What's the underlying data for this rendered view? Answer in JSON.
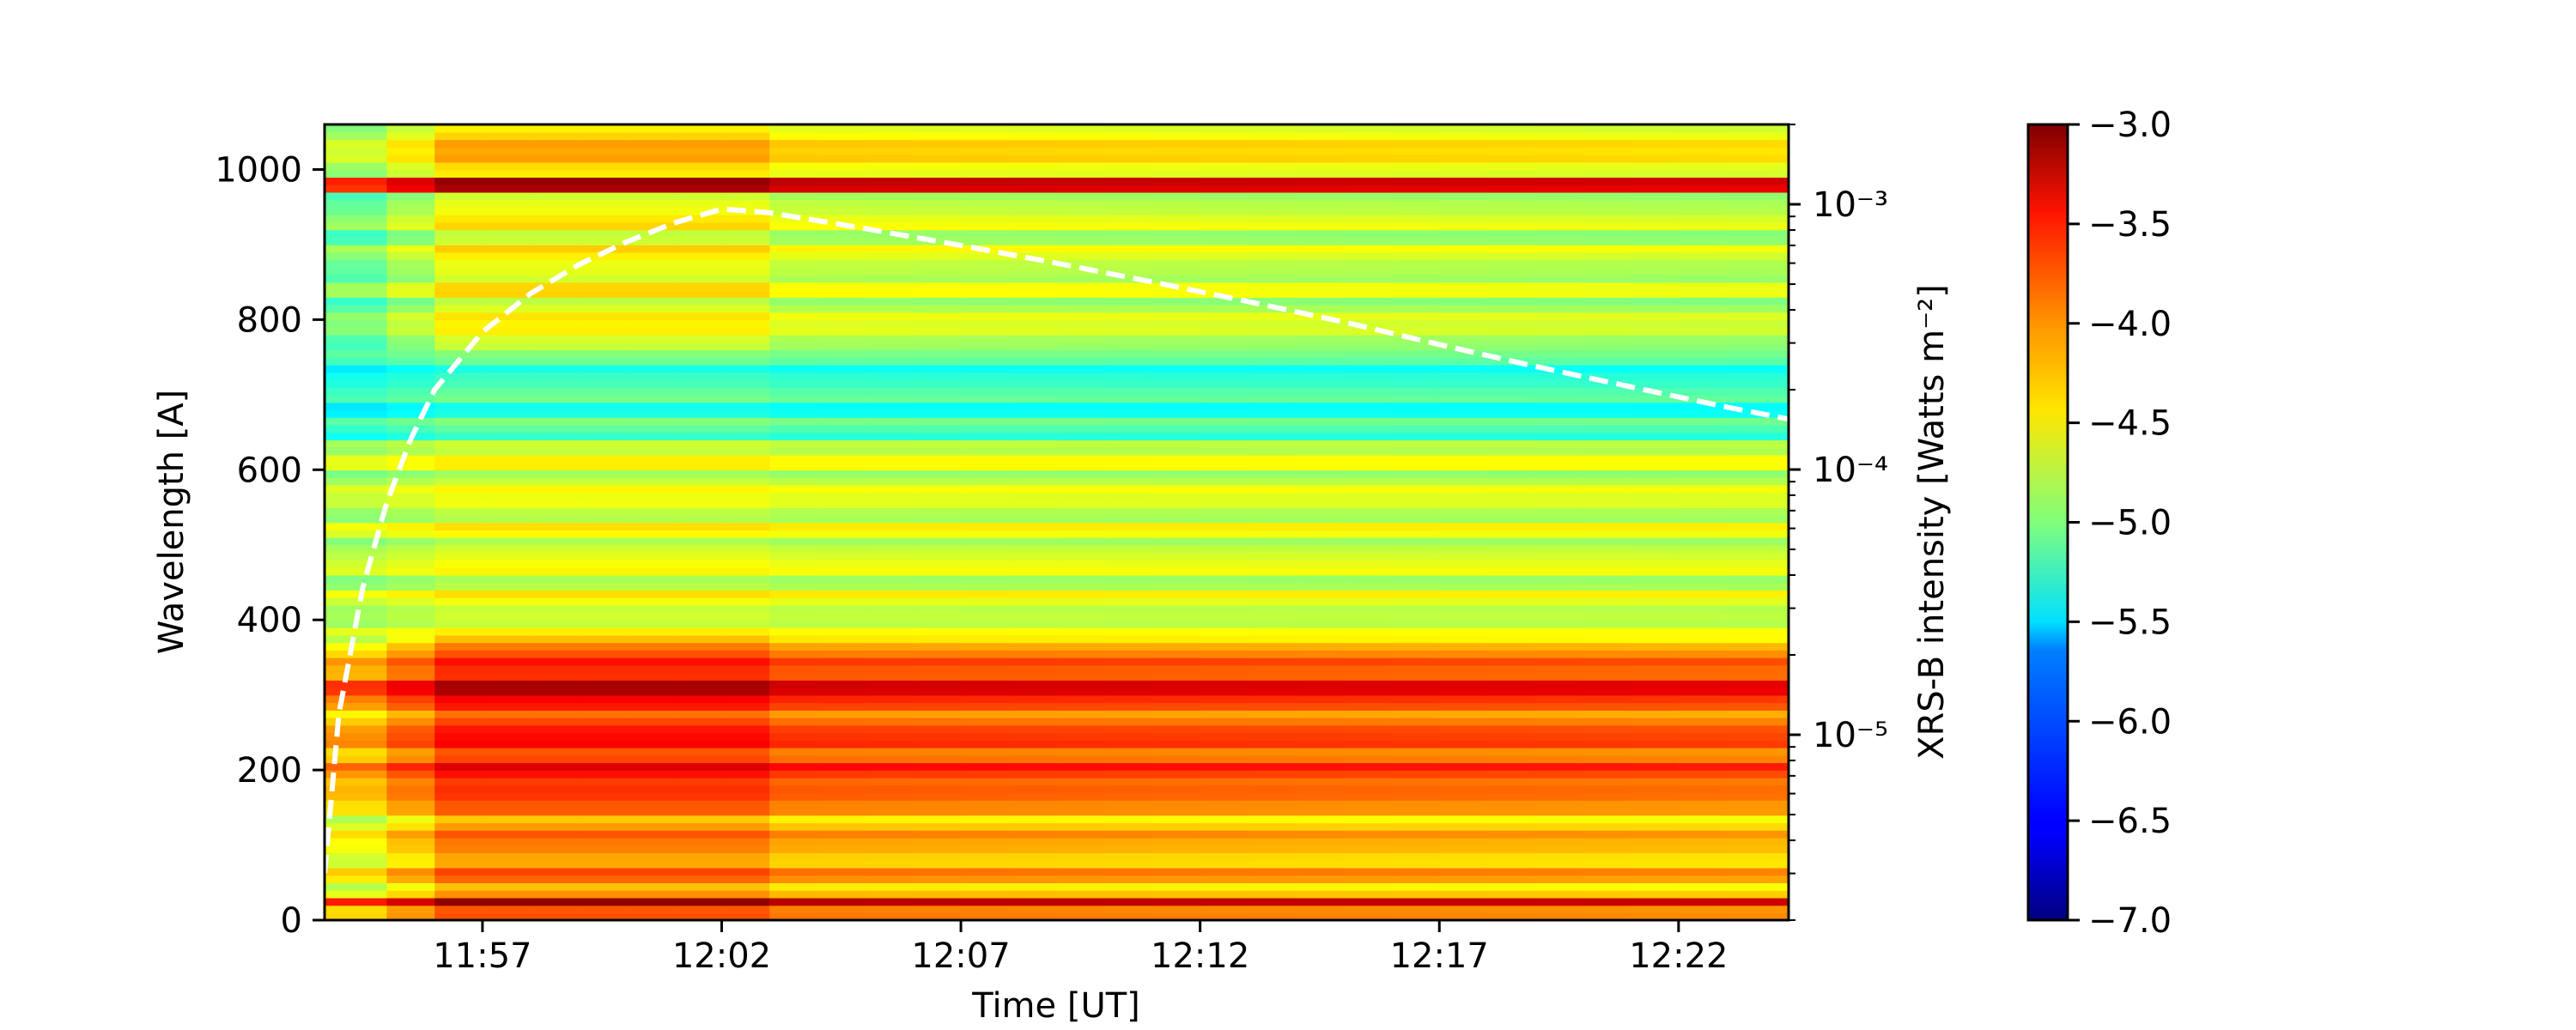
{
  "chart_data": {
    "type": "heatmap",
    "title": "",
    "xlabel": "Time [UT]",
    "ylabel": "Wavelength [A]",
    "y2label": "XRS-B intensity [Watts m⁻²]",
    "x_ticks": [
      "11:57",
      "12:02",
      "12:07",
      "12:12",
      "12:17",
      "12:22"
    ],
    "x_tick_minutes": [
      0,
      5,
      10,
      15,
      20,
      25
    ],
    "x_range_minutes_from_1157": [
      -3.3,
      27.3
    ],
    "ylim": [
      0,
      1060
    ],
    "y_ticks": [
      0,
      200,
      400,
      600,
      800,
      1000
    ],
    "y2_scale": "log",
    "y2_ticks": [
      "10⁻⁵",
      "10⁻⁴",
      "10⁻³"
    ],
    "y2_tick_values": [
      1e-05,
      0.0001,
      0.001
    ],
    "y2_range": [
      2e-06,
      0.002
    ],
    "colorbar": {
      "colormap": "jet",
      "range": [
        -7.0,
        -3.0
      ],
      "ticks": [
        "−3.0",
        "−3.5",
        "−4.0",
        "−4.5",
        "−5.0",
        "−5.5",
        "−6.0",
        "−6.5",
        "−7.0"
      ]
    },
    "heatmap_rows": {
      "wavelength_bin_width": 10,
      "baseline_log_intensity_by_band": [
        {
          "from": 0,
          "to": 20,
          "value": -4.2
        },
        {
          "from": 20,
          "to": 30,
          "value": -3.4
        },
        {
          "from": 30,
          "to": 160,
          "value": -4.3
        },
        {
          "from": 160,
          "to": 260,
          "value": -3.9
        },
        {
          "from": 260,
          "to": 300,
          "value": -4.0
        },
        {
          "from": 300,
          "to": 320,
          "value": -3.3
        },
        {
          "from": 320,
          "to": 370,
          "value": -4.0
        },
        {
          "from": 370,
          "to": 640,
          "value": -4.7
        },
        {
          "from": 640,
          "to": 760,
          "value": -5.3
        },
        {
          "from": 760,
          "to": 970,
          "value": -4.8
        },
        {
          "from": 970,
          "to": 990,
          "value": -3.6
        },
        {
          "from": 990,
          "to": 1060,
          "value": -4.5
        }
      ]
    },
    "series": [
      {
        "type": "line",
        "style": "dashed",
        "color": "#ffffff",
        "axis": "y2",
        "x_minutes_from_1157": [
          -3.3,
          -3.0,
          -2.5,
          -2.0,
          -1.5,
          -1.0,
          0.0,
          1.0,
          2.0,
          3.0,
          4.0,
          5.0,
          6.0,
          8.0,
          10.0,
          12.0,
          14.0,
          16.0,
          18.0,
          20.0,
          22.0,
          24.0,
          26.0,
          27.3
        ],
        "values": [
          3e-06,
          1.2e-05,
          3.6e-05,
          7.5e-05,
          0.00013,
          0.0002,
          0.00033,
          0.00046,
          0.00059,
          0.00072,
          0.00085,
          0.00096,
          0.00093,
          0.00081,
          0.0007,
          0.0006,
          0.00051,
          0.00043,
          0.00036,
          0.000296,
          0.000245,
          0.000205,
          0.000172,
          0.000155
        ]
      }
    ]
  }
}
